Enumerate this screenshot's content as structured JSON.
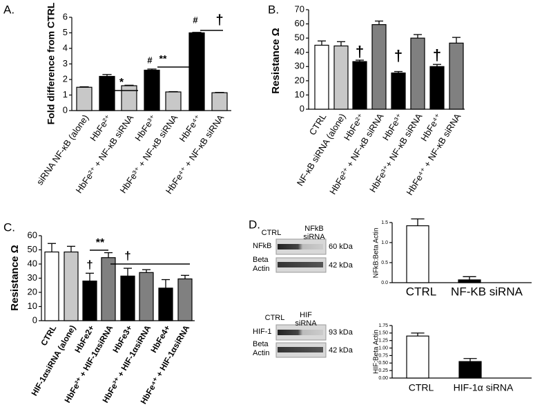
{
  "chart_data": [
    {
      "type": "bar",
      "label": "A.",
      "ylabel": "Fold difference from CTRL",
      "categories": [
        "siRNA NF-κB (alone)",
        "HbFe²⁺",
        "HbFe²⁺ + NF-κB siRNA",
        "HbFe³⁺",
        "HbFe³⁺ + NF-κB siRNA",
        "HbFe⁴⁺",
        "HbFe⁴⁺ + NF-κB siRNA"
      ],
      "values": [
        1.5,
        2.2,
        1.6,
        2.6,
        1.2,
        5.0,
        1.15
      ],
      "errors": [
        0.03,
        0.12,
        0.03,
        0.07,
        0.02,
        0.03,
        0.02
      ],
      "colors": [
        "#c8c8c8",
        "#000000",
        "#c8c8c8",
        "#000000",
        "#c8c8c8",
        "#000000",
        "#c8c8c8"
      ],
      "ylim": [
        0,
        6
      ],
      "yticks": [
        0,
        1,
        2,
        3,
        4,
        5,
        6
      ],
      "annotations": [
        "#",
        "*",
        "#",
        "**",
        "#",
        "†"
      ]
    },
    {
      "type": "bar",
      "label": "B.",
      "ylabel": "Resistance Ω",
      "categories": [
        "CTRL",
        "NF-κB siRNA (alone)",
        "HbFe²⁺",
        "HbFe²⁺ + NF-κB siRNA",
        "HbFe³⁺",
        "HbFe³⁺+ NF-κB siRNA",
        "HbFe⁴⁺",
        "HbFe⁴⁺ + NF-κB siRNA"
      ],
      "values": [
        45,
        44.5,
        33.5,
        59.5,
        25.5,
        50,
        30,
        46.5
      ],
      "errors": [
        3,
        3,
        1,
        2.5,
        1,
        2.5,
        1.5,
        4
      ],
      "colors": [
        "#ffffff",
        "#c8c8c8",
        "#000000",
        "#808080",
        "#000000",
        "#808080",
        "#000000",
        "#808080"
      ],
      "ylim": [
        0,
        70
      ],
      "yticks": [
        0,
        10,
        20,
        30,
        40,
        50,
        60,
        70
      ],
      "annotations": [
        "†",
        "†",
        "†"
      ]
    },
    {
      "type": "bar",
      "label": "C.",
      "ylabel": "Resistance Ω",
      "categories": [
        "CTRL",
        "HIF-1αsiRNA (alone)",
        "HbFe2+",
        "HbFe²⁺ + HIF-1αsiRNA",
        "HbFe3+",
        "HbFe³⁺ + HIF-1αsiRNA",
        "HbFe4+",
        "HbFe⁴⁺ + HIF-1αsiRNA"
      ],
      "values": [
        48.5,
        48.5,
        28,
        44.5,
        31.5,
        34,
        23,
        29.5
      ],
      "errors": [
        6,
        4,
        5.5,
        3.5,
        5.5,
        2,
        6,
        2.5
      ],
      "colors": [
        "#ffffff",
        "#c8c8c8",
        "#000000",
        "#808080",
        "#000000",
        "#808080",
        "#000000",
        "#808080"
      ],
      "ylim": [
        0,
        60
      ],
      "yticks": [
        0,
        10,
        20,
        30,
        40,
        50,
        60
      ],
      "annotations": [
        "†",
        "**",
        "†"
      ]
    },
    {
      "type": "bar",
      "ylabel": "NFkB:Beta Actin",
      "categories": [
        "CTRL",
        "NF-ΚB siRNA"
      ],
      "values": [
        1.42,
        0.07
      ],
      "errors": [
        0.17,
        0.08
      ],
      "colors": [
        "#ffffff",
        "#000000"
      ],
      "ylim": [
        0,
        1.5
      ],
      "yticks": [
        {
          "value": 0,
          "label": "0.0"
        },
        {
          "value": 0.5,
          "label": "0.5"
        },
        {
          "value": 1,
          "label": "1.0"
        },
        {
          "value": 1.5,
          "label": "1.5"
        }
      ]
    },
    {
      "type": "bar",
      "ylabel": "HIF:Beta Actin",
      "categories": [
        "CTRL",
        "HIF-1α siRNA"
      ],
      "values": [
        1.4,
        0.55
      ],
      "errors": [
        0.1,
        0.1
      ],
      "colors": [
        "#ffffff",
        "#000000"
      ],
      "ylim": [
        0,
        1.75
      ],
      "yticks": [
        {
          "value": 0,
          "label": "0.00"
        },
        {
          "value": 0.25,
          "label": "0.25"
        },
        {
          "value": 0.5,
          "label": "0.50"
        },
        {
          "value": 0.75,
          "label": "0.75"
        },
        {
          "value": 1,
          "label": "1.00"
        },
        {
          "value": 1.25,
          "label": "1.25"
        },
        {
          "value": 1.5,
          "label": "1.50"
        },
        {
          "value": 1.75,
          "label": "1.75"
        }
      ]
    }
  ],
  "blots": {
    "label": "D.",
    "groups": [
      {
        "lanes": [
          [
            "CTRL"
          ],
          [
            "NFkB",
            "siRNA"
          ]
        ],
        "bands": [
          {
            "name": [
              "NFkB"
            ],
            "size": "60 kDa"
          },
          {
            "name": [
              "Beta",
              "Actin"
            ],
            "size": "42 kDa"
          }
        ]
      },
      {
        "lanes": [
          [
            "CTRL"
          ],
          [
            "HIF",
            "siRNA"
          ]
        ],
        "bands": [
          {
            "name": [
              "HIF-1"
            ],
            "size": "93 kDa"
          },
          {
            "name": [
              "Beta",
              "Actin"
            ],
            "size": "42 kDa"
          }
        ]
      }
    ]
  }
}
